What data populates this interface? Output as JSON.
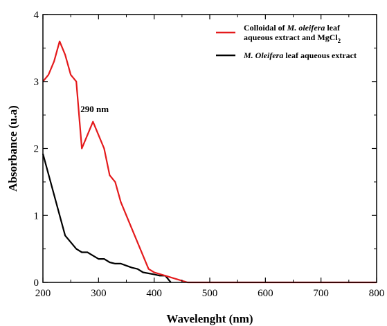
{
  "chart_data": {
    "type": "line",
    "title": "",
    "xlabel": "Wavelenght (nm)",
    "ylabel": "Absorbance (u.a)",
    "xlim": [
      200,
      800
    ],
    "ylim": [
      0,
      4
    ],
    "xticks": [
      200,
      300,
      400,
      500,
      600,
      700,
      800
    ],
    "yticks": [
      0,
      1,
      2,
      3,
      4
    ],
    "grid": false,
    "legend_position": "top-right",
    "series": [
      {
        "name_parts": [
          {
            "text": "Colloidal of ",
            "italic": false
          },
          {
            "text": "M. oleifera",
            "italic": true
          },
          {
            "text": " leaf",
            "italic": false
          }
        ],
        "name_line2": "aqueous extract and MgCl",
        "name_line2_subscript": "2",
        "color": "#e41a1c",
        "x": [
          200,
          210,
          220,
          230,
          240,
          250,
          260,
          270,
          280,
          290,
          300,
          310,
          320,
          330,
          340,
          360,
          380,
          390,
          400,
          420,
          440,
          460,
          500,
          600,
          700,
          800
        ],
        "y": [
          3.0,
          3.1,
          3.3,
          3.6,
          3.4,
          3.1,
          3.0,
          2.0,
          2.2,
          2.4,
          2.2,
          2.0,
          1.6,
          1.5,
          1.2,
          0.8,
          0.4,
          0.2,
          0.15,
          0.1,
          0.05,
          0.0,
          0.0,
          0.0,
          0.0,
          0.0
        ]
      },
      {
        "name_parts": [
          {
            "text": "M. Oleifera",
            "italic": true
          },
          {
            "text": " leaf aqueous extract",
            "italic": false
          }
        ],
        "color": "#000000",
        "x": [
          200,
          240,
          260,
          270,
          280,
          290,
          300,
          310,
          320,
          330,
          340,
          350,
          360,
          370,
          380,
          400,
          410,
          420,
          430
        ],
        "y": [
          1.92,
          0.7,
          0.5,
          0.45,
          0.45,
          0.4,
          0.35,
          0.35,
          0.3,
          0.28,
          0.28,
          0.25,
          0.22,
          0.2,
          0.15,
          0.12,
          0.1,
          0.1,
          0.0
        ]
      }
    ],
    "annotations": [
      {
        "text": "290 nm",
        "x": 290,
        "y": 2.4
      }
    ]
  }
}
